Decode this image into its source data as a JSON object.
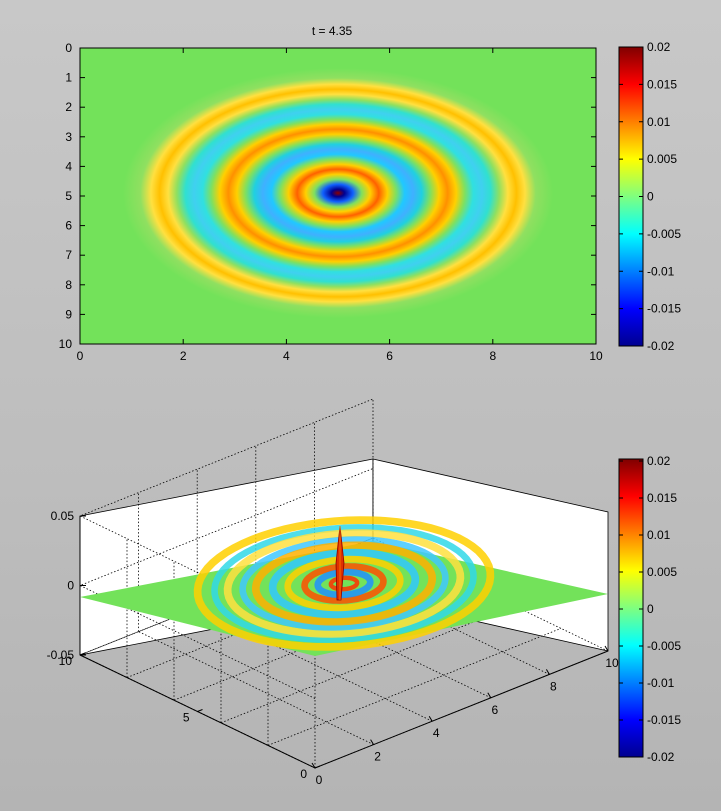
{
  "chart_data": [
    {
      "type": "heatmap",
      "title": "t = 4.35",
      "x_ticks": [
        "0",
        "2",
        "4",
        "6",
        "8",
        "10"
      ],
      "y_ticks": [
        "0",
        "1",
        "2",
        "3",
        "4",
        "5",
        "6",
        "7",
        "8",
        "9",
        "10"
      ],
      "xlim": [
        0,
        10
      ],
      "ylim": [
        0,
        10
      ],
      "y_reversed": true,
      "source_center": [
        5,
        4.9
      ],
      "rings": [
        {
          "radius": 0.0,
          "value": 0.02
        },
        {
          "radius": 0.35,
          "value": -0.02
        },
        {
          "radius": 1.0,
          "value": 0.012
        },
        {
          "radius": 1.7,
          "value": -0.007
        },
        {
          "radius": 2.4,
          "value": 0.008
        },
        {
          "radius": 3.1,
          "value": -0.004
        },
        {
          "radius": 3.9,
          "value": 0.004
        }
      ],
      "colorbar": {
        "range": [
          -0.02,
          0.02
        ],
        "ticks": [
          "0.02",
          "0.015",
          "0.01",
          "0.005",
          "0",
          "-0.005",
          "-0.01",
          "-0.015",
          "-0.02"
        ],
        "colormap": "jet"
      }
    },
    {
      "type": "surface",
      "x_ticks": [
        "0",
        "2",
        "4",
        "6",
        "8",
        "10"
      ],
      "y_ticks": [
        "0",
        "5",
        "10"
      ],
      "z_ticks": [
        "0.05",
        "0",
        "-0.05"
      ],
      "xlim": [
        0,
        10
      ],
      "ylim": [
        0,
        10
      ],
      "zlim": [
        -0.05,
        0.05
      ],
      "peak_z": 0.025,
      "colorbar": {
        "range": [
          -0.02,
          0.02
        ],
        "ticks": [
          "0.02",
          "0.015",
          "0.01",
          "0.005",
          "0",
          "-0.005",
          "-0.01",
          "-0.015",
          "-0.02"
        ],
        "colormap": "jet"
      }
    }
  ]
}
